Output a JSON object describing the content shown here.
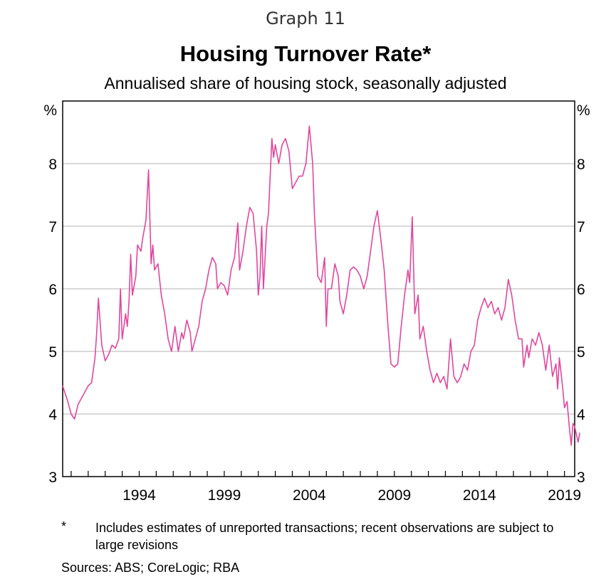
{
  "header": {
    "graph_number": "Graph 11",
    "title": "Housing Turnover Rate*",
    "subtitle": "Annualised share of housing stock, seasonally adjusted"
  },
  "footnote": {
    "marker": "*",
    "text": "Includes estimates of unreported transactions; recent observations are subject to large revisions"
  },
  "sources": "Sources:  ABS; CoreLogic; RBA",
  "colors": {
    "series": "#e0479e",
    "grid": "#b3b3b3",
    "axis": "#000000"
  },
  "chart_data": {
    "type": "line",
    "title": "Housing Turnover Rate*",
    "subtitle": "Annualised share of housing stock, seasonally adjusted",
    "y_unit_left": "%",
    "y_unit_right": "%",
    "ylim": [
      3,
      9
    ],
    "yticks": [
      3,
      4,
      5,
      6,
      7,
      8
    ],
    "xlim": [
      1989.5,
      2019.6
    ],
    "xticks_labeled": [
      1994,
      1999,
      2004,
      2009,
      2014,
      2019
    ],
    "grid": "horizontal",
    "legend": "none",
    "series": [
      {
        "color": "#e0479e",
        "points": [
          [
            1989.5,
            4.45
          ],
          [
            1989.8,
            4.2
          ],
          [
            1990.0,
            4.0
          ],
          [
            1990.2,
            3.92
          ],
          [
            1990.4,
            4.15
          ],
          [
            1990.6,
            4.25
          ],
          [
            1990.8,
            4.35
          ],
          [
            1991.0,
            4.45
          ],
          [
            1991.2,
            4.5
          ],
          [
            1991.4,
            4.9
          ],
          [
            1991.5,
            5.3
          ],
          [
            1991.6,
            5.85
          ],
          [
            1991.8,
            5.1
          ],
          [
            1992.0,
            4.85
          ],
          [
            1992.2,
            4.95
          ],
          [
            1992.4,
            5.1
          ],
          [
            1992.6,
            5.05
          ],
          [
            1992.8,
            5.2
          ],
          [
            1992.9,
            6.0
          ],
          [
            1993.0,
            5.2
          ],
          [
            1993.2,
            5.6
          ],
          [
            1993.3,
            5.4
          ],
          [
            1993.4,
            5.8
          ],
          [
            1993.5,
            6.55
          ],
          [
            1993.6,
            5.9
          ],
          [
            1993.8,
            6.2
          ],
          [
            1993.9,
            6.7
          ],
          [
            1994.1,
            6.6
          ],
          [
            1994.2,
            6.8
          ],
          [
            1994.4,
            7.1
          ],
          [
            1994.55,
            7.9
          ],
          [
            1994.7,
            6.4
          ],
          [
            1994.8,
            6.7
          ],
          [
            1994.9,
            6.3
          ],
          [
            1995.1,
            6.4
          ],
          [
            1995.3,
            5.9
          ],
          [
            1995.5,
            5.6
          ],
          [
            1995.7,
            5.2
          ],
          [
            1995.9,
            5.0
          ],
          [
            1996.1,
            5.4
          ],
          [
            1996.3,
            5.0
          ],
          [
            1996.5,
            5.3
          ],
          [
            1996.6,
            5.2
          ],
          [
            1996.8,
            5.5
          ],
          [
            1997.0,
            5.3
          ],
          [
            1997.1,
            5.0
          ],
          [
            1997.3,
            5.2
          ],
          [
            1997.5,
            5.4
          ],
          [
            1997.7,
            5.8
          ],
          [
            1997.9,
            6.0
          ],
          [
            1998.1,
            6.3
          ],
          [
            1998.3,
            6.5
          ],
          [
            1998.5,
            6.4
          ],
          [
            1998.6,
            6.0
          ],
          [
            1998.8,
            6.1
          ],
          [
            1999.0,
            6.05
          ],
          [
            1999.2,
            5.9
          ],
          [
            1999.4,
            6.3
          ],
          [
            1999.6,
            6.5
          ],
          [
            1999.8,
            7.05
          ],
          [
            1999.9,
            6.3
          ],
          [
            2000.1,
            6.6
          ],
          [
            2000.3,
            7.0
          ],
          [
            2000.5,
            7.3
          ],
          [
            2000.7,
            7.2
          ],
          [
            2000.9,
            6.6
          ],
          [
            2001.0,
            5.9
          ],
          [
            2001.1,
            6.2
          ],
          [
            2001.2,
            7.0
          ],
          [
            2001.3,
            6.0
          ],
          [
            2001.5,
            7.0
          ],
          [
            2001.6,
            7.2
          ],
          [
            2001.8,
            8.4
          ],
          [
            2001.9,
            8.1
          ],
          [
            2002.0,
            8.3
          ],
          [
            2002.2,
            8.0
          ],
          [
            2002.4,
            8.3
          ],
          [
            2002.6,
            8.4
          ],
          [
            2002.8,
            8.2
          ],
          [
            2003.0,
            7.6
          ],
          [
            2003.2,
            7.7
          ],
          [
            2003.4,
            7.8
          ],
          [
            2003.6,
            7.8
          ],
          [
            2003.8,
            8.0
          ],
          [
            2004.0,
            8.6
          ],
          [
            2004.2,
            8.0
          ],
          [
            2004.3,
            7.2
          ],
          [
            2004.5,
            6.2
          ],
          [
            2004.7,
            6.1
          ],
          [
            2004.9,
            6.5
          ],
          [
            2005.0,
            5.4
          ],
          [
            2005.1,
            6.0
          ],
          [
            2005.3,
            6.0
          ],
          [
            2005.5,
            6.4
          ],
          [
            2005.7,
            6.2
          ],
          [
            2005.8,
            5.8
          ],
          [
            2006.0,
            5.6
          ],
          [
            2006.2,
            5.9
          ],
          [
            2006.4,
            6.3
          ],
          [
            2006.6,
            6.35
          ],
          [
            2006.8,
            6.3
          ],
          [
            2007.0,
            6.2
          ],
          [
            2007.2,
            6.0
          ],
          [
            2007.4,
            6.2
          ],
          [
            2007.6,
            6.6
          ],
          [
            2007.8,
            7.0
          ],
          [
            2008.0,
            7.25
          ],
          [
            2008.2,
            6.8
          ],
          [
            2008.4,
            6.3
          ],
          [
            2008.6,
            5.5
          ],
          [
            2008.8,
            4.8
          ],
          [
            2009.0,
            4.75
          ],
          [
            2009.2,
            4.8
          ],
          [
            2009.4,
            5.4
          ],
          [
            2009.6,
            5.9
          ],
          [
            2009.8,
            6.3
          ],
          [
            2009.9,
            6.1
          ],
          [
            2010.05,
            7.15
          ],
          [
            2010.2,
            5.6
          ],
          [
            2010.4,
            5.9
          ],
          [
            2010.5,
            5.2
          ],
          [
            2010.7,
            5.4
          ],
          [
            2010.9,
            5.0
          ],
          [
            2011.1,
            4.7
          ],
          [
            2011.3,
            4.5
          ],
          [
            2011.5,
            4.65
          ],
          [
            2011.7,
            4.5
          ],
          [
            2011.9,
            4.6
          ],
          [
            2012.1,
            4.4
          ],
          [
            2012.3,
            5.2
          ],
          [
            2012.5,
            4.6
          ],
          [
            2012.7,
            4.5
          ],
          [
            2012.9,
            4.6
          ],
          [
            2013.1,
            4.8
          ],
          [
            2013.3,
            4.7
          ],
          [
            2013.5,
            5.0
          ],
          [
            2013.7,
            5.1
          ],
          [
            2013.9,
            5.5
          ],
          [
            2014.1,
            5.7
          ],
          [
            2014.3,
            5.85
          ],
          [
            2014.5,
            5.7
          ],
          [
            2014.7,
            5.8
          ],
          [
            2014.9,
            5.6
          ],
          [
            2015.1,
            5.7
          ],
          [
            2015.3,
            5.5
          ],
          [
            2015.5,
            5.7
          ],
          [
            2015.7,
            6.15
          ],
          [
            2015.9,
            5.9
          ],
          [
            2016.1,
            5.5
          ],
          [
            2016.3,
            5.2
          ],
          [
            2016.5,
            5.2
          ],
          [
            2016.6,
            4.75
          ],
          [
            2016.8,
            5.1
          ],
          [
            2016.9,
            4.9
          ],
          [
            2017.1,
            5.2
          ],
          [
            2017.3,
            5.1
          ],
          [
            2017.5,
            5.3
          ],
          [
            2017.7,
            5.1
          ],
          [
            2017.9,
            4.7
          ],
          [
            2018.1,
            5.1
          ],
          [
            2018.3,
            4.6
          ],
          [
            2018.5,
            4.8
          ],
          [
            2018.6,
            4.4
          ],
          [
            2018.7,
            4.9
          ],
          [
            2018.9,
            4.4
          ],
          [
            2019.0,
            4.1
          ],
          [
            2019.15,
            4.2
          ],
          [
            2019.3,
            3.75
          ],
          [
            2019.4,
            3.5
          ],
          [
            2019.5,
            3.85
          ],
          [
            2019.6,
            3.8
          ],
          [
            2019.8,
            3.55
          ],
          [
            2019.9,
            3.7
          ]
        ]
      }
    ]
  }
}
